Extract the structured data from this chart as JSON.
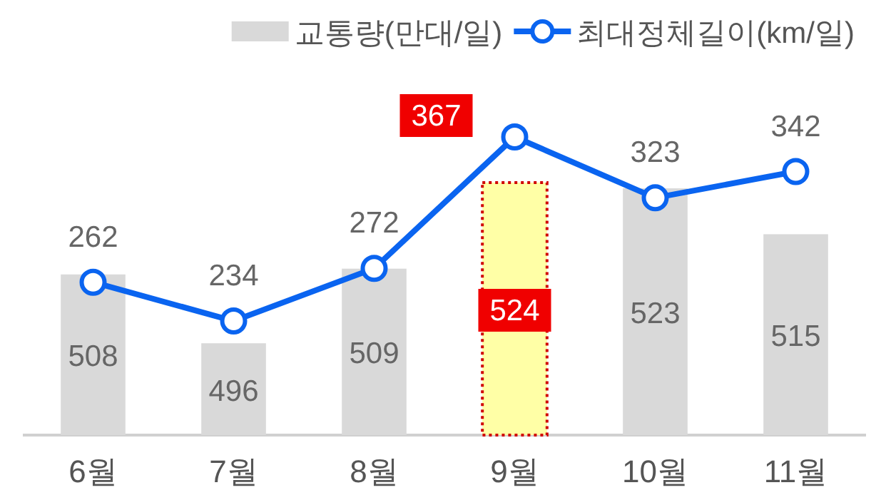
{
  "chart_data": {
    "type": "bar",
    "categories": [
      "6월",
      "7월",
      "8월",
      "9월",
      "10월",
      "11월"
    ],
    "series": [
      {
        "name": "교통량(만대/일)",
        "color": "#d9d9d9",
        "colors": [
          "#d9d9d9",
          "#d9d9d9",
          "#d9d9d9",
          "#ffffa6",
          "#d9d9d9",
          "#d9d9d9"
        ],
        "values": [
          508,
          496,
          509,
          524,
          523,
          515
        ]
      },
      {
        "name": "최대정체길이(km/일)",
        "type": "line",
        "axis": "y2",
        "color": "#0a64f0",
        "values": [
          262,
          234,
          272,
          367,
          323,
          342
        ]
      }
    ],
    "ylim": [
      480,
      524
    ],
    "tick_labels": "x",
    "data_labels": true,
    "legend": "top right",
    "marker": "circle",
    "line_style": "solid"
  }
}
